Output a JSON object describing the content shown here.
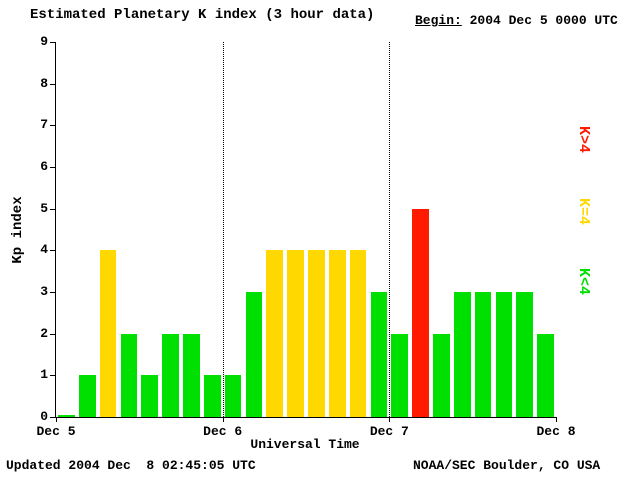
{
  "header": {
    "title": "Estimated Planetary K index (3 hour data)",
    "begin_label": "Begin:",
    "begin_value": " 2004 Dec 5 0000 UTC"
  },
  "footer": {
    "updated": "Updated 2004 Dec  8 02:45:05 UTC",
    "source": "NOAA/SEC Boulder, CO USA"
  },
  "legend": [
    {
      "label": "K>4",
      "color": "#ff1a00"
    },
    {
      "label": "K=4",
      "color": "#ffd800"
    },
    {
      "label": "K<4",
      "color": "#00e000"
    }
  ],
  "chart_data": {
    "type": "bar",
    "title": "Estimated Planetary K index (3 hour data)",
    "xlabel": "Universal Time",
    "ylabel": "Kp index",
    "ylim": [
      0,
      9
    ],
    "y_ticks": [
      0,
      1,
      2,
      3,
      4,
      5,
      6,
      7,
      8,
      9
    ],
    "x_tick_labels": [
      "Dec 5",
      "Dec 6",
      "Dec 7",
      "Dec 8"
    ],
    "hours_per_bar": 3,
    "bars_per_day": 8,
    "day_divider_positions": [
      8,
      16
    ],
    "values": [
      0,
      1,
      4,
      2,
      1,
      2,
      2,
      1,
      1,
      3,
      4,
      4,
      4,
      4,
      4,
      3,
      2,
      5,
      2,
      3,
      3,
      3,
      3,
      2
    ],
    "color_rule": {
      "below_4": "#00e000",
      "equal_4": "#ffd800",
      "above_4": "#ff1a00"
    },
    "grid": false,
    "legend_position": "right"
  }
}
